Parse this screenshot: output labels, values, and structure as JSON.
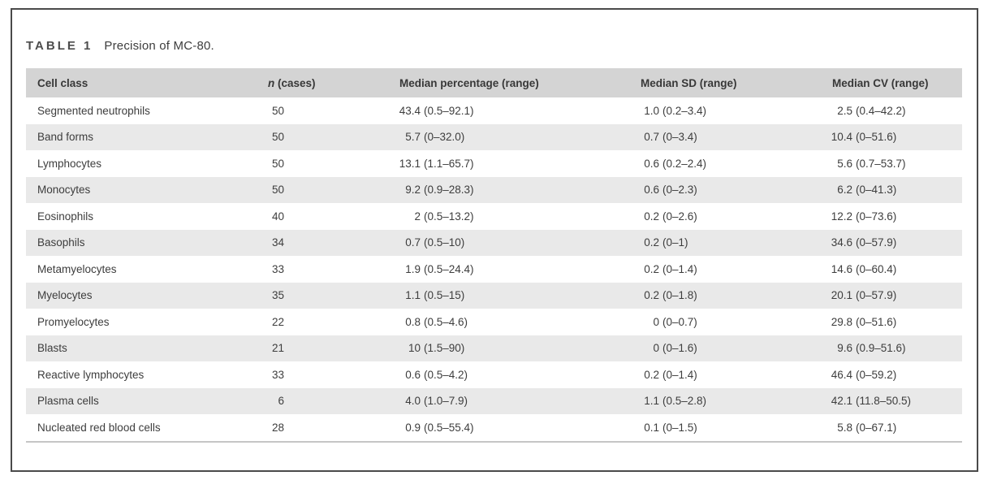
{
  "table": {
    "label": "TABLE 1",
    "caption": "Precision of MC-80.",
    "columns": {
      "cell_class": "Cell class",
      "n_italic": "n",
      "n_rest": " (cases)",
      "median_pct": "Median percentage (range)",
      "median_sd": "Median SD (range)",
      "median_cv": "Median CV (range)"
    },
    "rows": [
      {
        "cell_class": "Segmented neutrophils",
        "n": "50",
        "pct": "43.4",
        "pct_range": "(0.5–92.1)",
        "sd": "1.0",
        "sd_range": "(0.2–3.4)",
        "cv": "2.5",
        "cv_range": "(0.4–42.2)"
      },
      {
        "cell_class": "Band forms",
        "n": "50",
        "pct": "5.7",
        "pct_range": "(0–32.0)",
        "sd": "0.7",
        "sd_range": "(0–3.4)",
        "cv": "10.4",
        "cv_range": "(0–51.6)"
      },
      {
        "cell_class": "Lymphocytes",
        "n": "50",
        "pct": "13.1",
        "pct_range": "(1.1–65.7)",
        "sd": "0.6",
        "sd_range": "(0.2–2.4)",
        "cv": "5.6",
        "cv_range": "(0.7–53.7)"
      },
      {
        "cell_class": "Monocytes",
        "n": "50",
        "pct": "9.2",
        "pct_range": "(0.9–28.3)",
        "sd": "0.6",
        "sd_range": "(0–2.3)",
        "cv": "6.2",
        "cv_range": "(0–41.3)"
      },
      {
        "cell_class": "Eosinophils",
        "n": "40",
        "pct": "2",
        "pct_range": "(0.5–13.2)",
        "sd": "0.2",
        "sd_range": "(0–2.6)",
        "cv": "12.2",
        "cv_range": "(0–73.6)"
      },
      {
        "cell_class": "Basophils",
        "n": "34",
        "pct": "0.7",
        "pct_range": "(0.5–10)",
        "sd": "0.2",
        "sd_range": "(0–1)",
        "cv": "34.6",
        "cv_range": "(0–57.9)"
      },
      {
        "cell_class": "Metamyelocytes",
        "n": "33",
        "pct": "1.9",
        "pct_range": "(0.5–24.4)",
        "sd": "0.2",
        "sd_range": "(0–1.4)",
        "cv": "14.6",
        "cv_range": "(0–60.4)"
      },
      {
        "cell_class": "Myelocytes",
        "n": "35",
        "pct": "1.1",
        "pct_range": "(0.5–15)",
        "sd": "0.2",
        "sd_range": "(0–1.8)",
        "cv": "20.1",
        "cv_range": "(0–57.9)"
      },
      {
        "cell_class": "Promyelocytes",
        "n": "22",
        "pct": "0.8",
        "pct_range": "(0.5–4.6)",
        "sd": "0",
        "sd_range": "(0–0.7)",
        "cv": "29.8",
        "cv_range": "(0–51.6)"
      },
      {
        "cell_class": "Blasts",
        "n": "21",
        "pct": "10",
        "pct_range": "(1.5–90)",
        "sd": "0",
        "sd_range": "(0–1.6)",
        "cv": "9.6",
        "cv_range": "(0.9–51.6)"
      },
      {
        "cell_class": "Reactive lymphocytes",
        "n": "33",
        "pct": "0.6",
        "pct_range": "(0.5–4.2)",
        "sd": "0.2",
        "sd_range": "(0–1.4)",
        "cv": "46.4",
        "cv_range": "(0–59.2)"
      },
      {
        "cell_class": "Plasma cells",
        "n": "6",
        "pct": "4.0",
        "pct_range": "(1.0–7.9)",
        "sd": "1.1",
        "sd_range": "(0.5–2.8)",
        "cv": "42.1",
        "cv_range": "(11.8–50.5)"
      },
      {
        "cell_class": "Nucleated red blood cells",
        "n": "28",
        "pct": "0.9",
        "pct_range": "(0.5–55.4)",
        "sd": "0.1",
        "sd_range": "(0–1.5)",
        "cv": "5.8",
        "cv_range": "(0–67.1)"
      }
    ]
  }
}
